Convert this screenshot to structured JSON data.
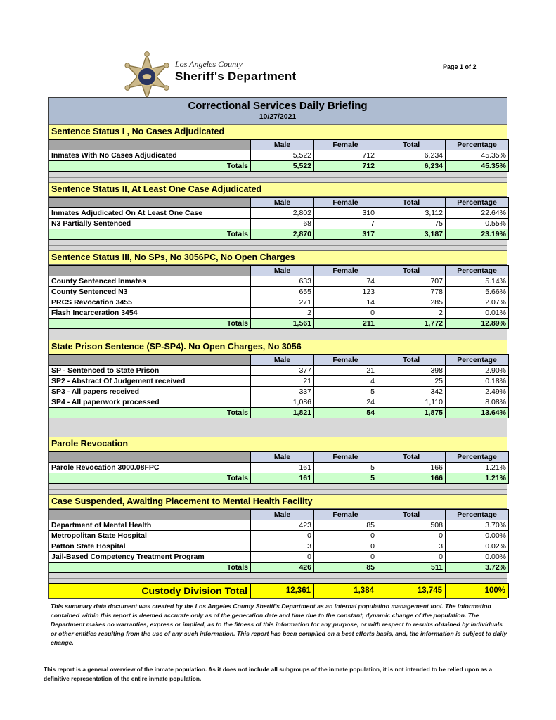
{
  "page": {
    "page_label": "Page 1 of 2"
  },
  "logo": {
    "county": "Los Angeles County",
    "department": "Sheriff's Department"
  },
  "title": {
    "heading": "Correctional Services Daily Briefing",
    "date": "10/27/2021"
  },
  "columns": [
    "Male",
    "Female",
    "Total",
    "Percentage"
  ],
  "totals_label": "Totals",
  "sections": [
    {
      "title": "Sentence Status I , No Cases Adjudicated",
      "rows": [
        {
          "label": "Inmates With No Cases Adjudicated",
          "values": [
            "5,522",
            "712",
            "6,234",
            "45.35%"
          ]
        }
      ],
      "totals": [
        "5,522",
        "712",
        "6,234",
        "45.35%"
      ]
    },
    {
      "title": "Sentence Status II, At Least One Case Adjudicated",
      "rows": [
        {
          "label": "Inmates Adjudicated On At Least One Case",
          "values": [
            "2,802",
            "310",
            "3,112",
            "22.64%"
          ]
        },
        {
          "label": "N3 Partially Sentenced",
          "values": [
            "68",
            "7",
            "75",
            "0.55%"
          ]
        }
      ],
      "totals": [
        "2,870",
        "317",
        "3,187",
        "23.19%"
      ]
    },
    {
      "title": "Sentence Status III, No SPs, No 3056PC, No Open Charges",
      "rows": [
        {
          "label": "County Sentenced Inmates",
          "values": [
            "633",
            "74",
            "707",
            "5.14%"
          ]
        },
        {
          "label": "County Sentenced N3",
          "values": [
            "655",
            "123",
            "778",
            "5.66%"
          ]
        },
        {
          "label": "PRCS Revocation 3455",
          "values": [
            "271",
            "14",
            "285",
            "2.07%"
          ]
        },
        {
          "label": "Flash Incarceration 3454",
          "values": [
            "2",
            "0",
            "2",
            "0.01%"
          ]
        }
      ],
      "totals": [
        "1,561",
        "211",
        "1,772",
        "12.89%"
      ]
    },
    {
      "title": "State Prison Sentence (SP-SP4). No Open Charges, No 3056",
      "rows": [
        {
          "label": "SP - Sentenced to State Prison",
          "values": [
            "377",
            "21",
            "398",
            "2.90%"
          ]
        },
        {
          "label": "SP2 - Abstract Of Judgement received",
          "values": [
            "21",
            "4",
            "25",
            "0.18%"
          ]
        },
        {
          "label": "SP3 - All papers received",
          "values": [
            "337",
            "5",
            "342",
            "2.49%"
          ]
        },
        {
          "label": "SP4 - All paperwork processed",
          "values": [
            "1,086",
            "24",
            "1,110",
            "8.08%"
          ]
        }
      ],
      "totals": [
        "1,821",
        "54",
        "1,875",
        "13.64%"
      ]
    },
    {
      "title": "Parole Revocation",
      "rows": [
        {
          "label": "Parole Revocation 3000.08FPC",
          "values": [
            "161",
            "5",
            "166",
            "1.21%"
          ]
        }
      ],
      "totals": [
        "161",
        "5",
        "166",
        "1.21%"
      ]
    },
    {
      "title": "Case Suspended, Awaiting Placement to Mental Health Facility",
      "rows": [
        {
          "label": "Department of Mental Health",
          "values": [
            "423",
            "85",
            "508",
            "3.70%"
          ]
        },
        {
          "label": "Metropolitan State Hospital",
          "values": [
            "0",
            "0",
            "0",
            "0.00%"
          ]
        },
        {
          "label": "Patton State Hospital",
          "values": [
            "3",
            "0",
            "3",
            "0.02%"
          ]
        },
        {
          "label": "Jail-Based Competency Treatment Program",
          "values": [
            "0",
            "0",
            "0",
            "0.00%"
          ]
        }
      ],
      "totals": [
        "426",
        "85",
        "511",
        "3.72%"
      ]
    }
  ],
  "grand_total": {
    "label": "Custody Division Total",
    "values": [
      "12,361",
      "1,384",
      "13,745",
      "100%"
    ]
  },
  "footnotes": {
    "disclaimer": "This summary data document was created by the Los Angeles County Sheriff's Department as an internal population management tool.  The information contained within this report is deemed accurate only as of the generation date and time due to the constant, dynamic change of the population.  The Department makes no warranties, express or implied, as to the fitness of this information for any purpose, or with respect to results obtained by individuals or other entities resulting from the use of any such information.  This report has been compiled on a best efforts basis, and, the information is subject to daily change.",
    "overview": "This report is a general overview of the inmate population.  As it does not include all subgroups of the inmate population, it is not intended to be relied upon as a definitive representation of the entire inmate population."
  },
  "colors": {
    "section_header": "#ffff9c",
    "column_header": "#ccd4e8",
    "totals_row": "#ccffcc",
    "grand_total_row": "#ffff00",
    "title_bar": "#aebcd1",
    "corner_cell": "#a5a5a5",
    "badge_gold": "#cbb88a",
    "badge_navy": "#2a3560"
  }
}
